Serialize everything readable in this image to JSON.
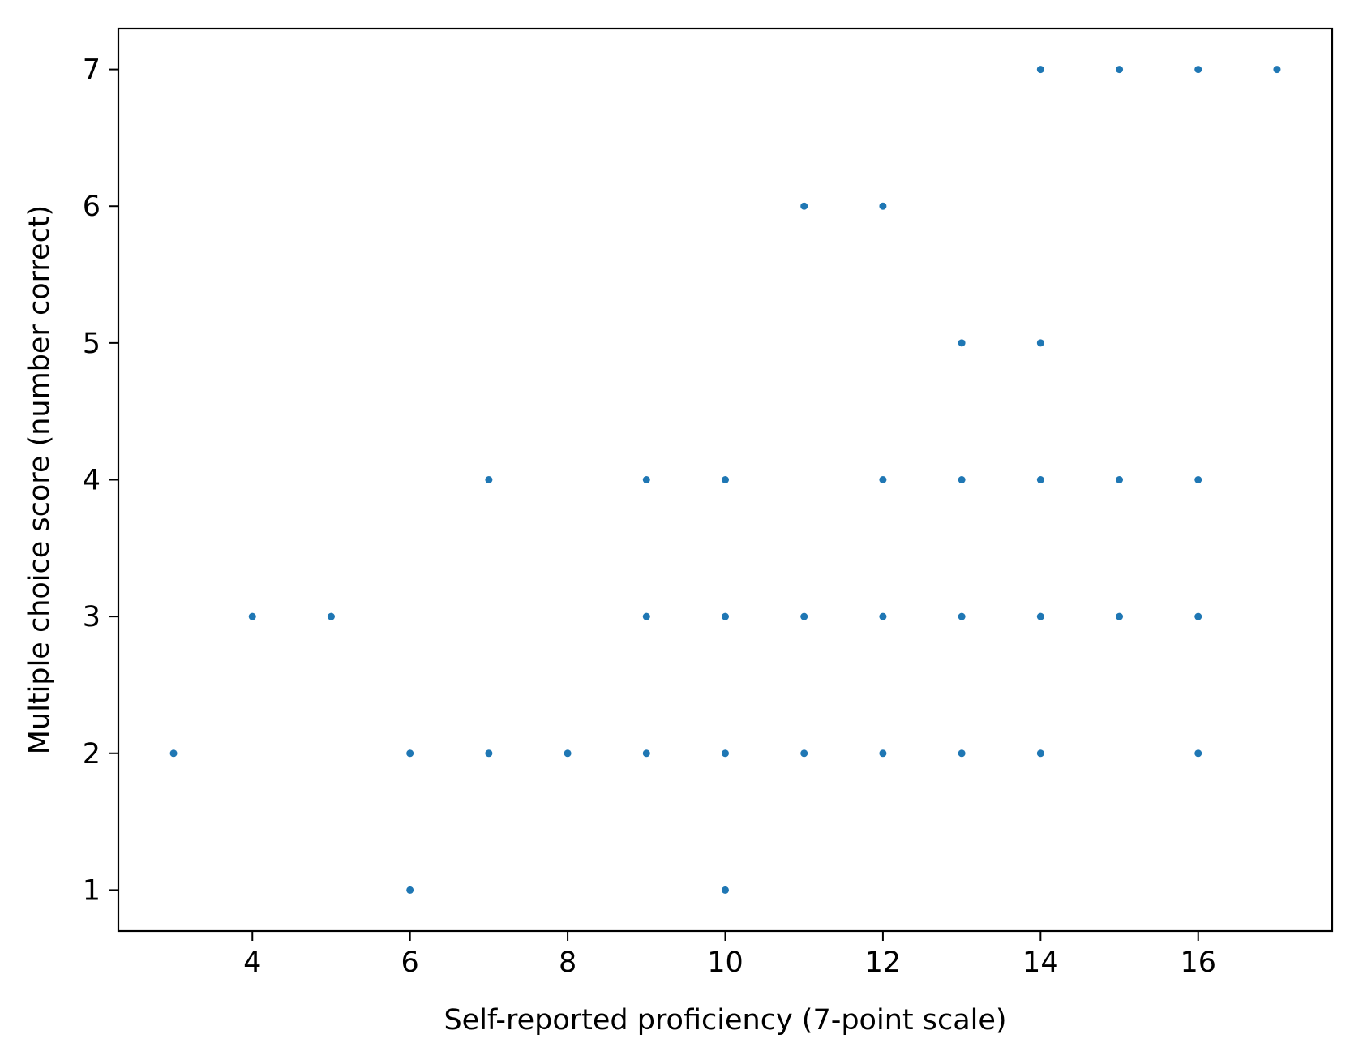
{
  "chart_data": {
    "type": "scatter",
    "title": "",
    "xlabel": "Self-reported proficiency (7-point scale)",
    "ylabel": "Multiple choice score (number correct)",
    "xlim": [
      2.3,
      17.7
    ],
    "ylim": [
      0.7,
      7.3
    ],
    "xticks": [
      4,
      6,
      8,
      10,
      12,
      14,
      16
    ],
    "xtick_labels": [
      "4",
      "6",
      "8",
      "10",
      "12",
      "14",
      "16"
    ],
    "yticks": [
      1,
      2,
      3,
      4,
      5,
      6,
      7
    ],
    "ytick_labels": [
      "1",
      "2",
      "3",
      "4",
      "5",
      "6",
      "7"
    ],
    "grid": false,
    "legend": "none",
    "series": [
      {
        "color": "#1f77b4",
        "points": [
          [
            3,
            2
          ],
          [
            4,
            3
          ],
          [
            5,
            3
          ],
          [
            6,
            1
          ],
          [
            6,
            2
          ],
          [
            7,
            2
          ],
          [
            7,
            4
          ],
          [
            8,
            2
          ],
          [
            9,
            2
          ],
          [
            9,
            3
          ],
          [
            9,
            4
          ],
          [
            10,
            1
          ],
          [
            10,
            2
          ],
          [
            10,
            3
          ],
          [
            10,
            4
          ],
          [
            11,
            2
          ],
          [
            11,
            3
          ],
          [
            11,
            6
          ],
          [
            12,
            2
          ],
          [
            12,
            3
          ],
          [
            12,
            4
          ],
          [
            12,
            6
          ],
          [
            13,
            2
          ],
          [
            13,
            3
          ],
          [
            13,
            4
          ],
          [
            13,
            5
          ],
          [
            14,
            2
          ],
          [
            14,
            3
          ],
          [
            14,
            4
          ],
          [
            14,
            5
          ],
          [
            14,
            7
          ],
          [
            15,
            3
          ],
          [
            15,
            4
          ],
          [
            15,
            7
          ],
          [
            16,
            2
          ],
          [
            16,
            3
          ],
          [
            16,
            4
          ],
          [
            16,
            7
          ],
          [
            17,
            7
          ]
        ]
      }
    ]
  }
}
